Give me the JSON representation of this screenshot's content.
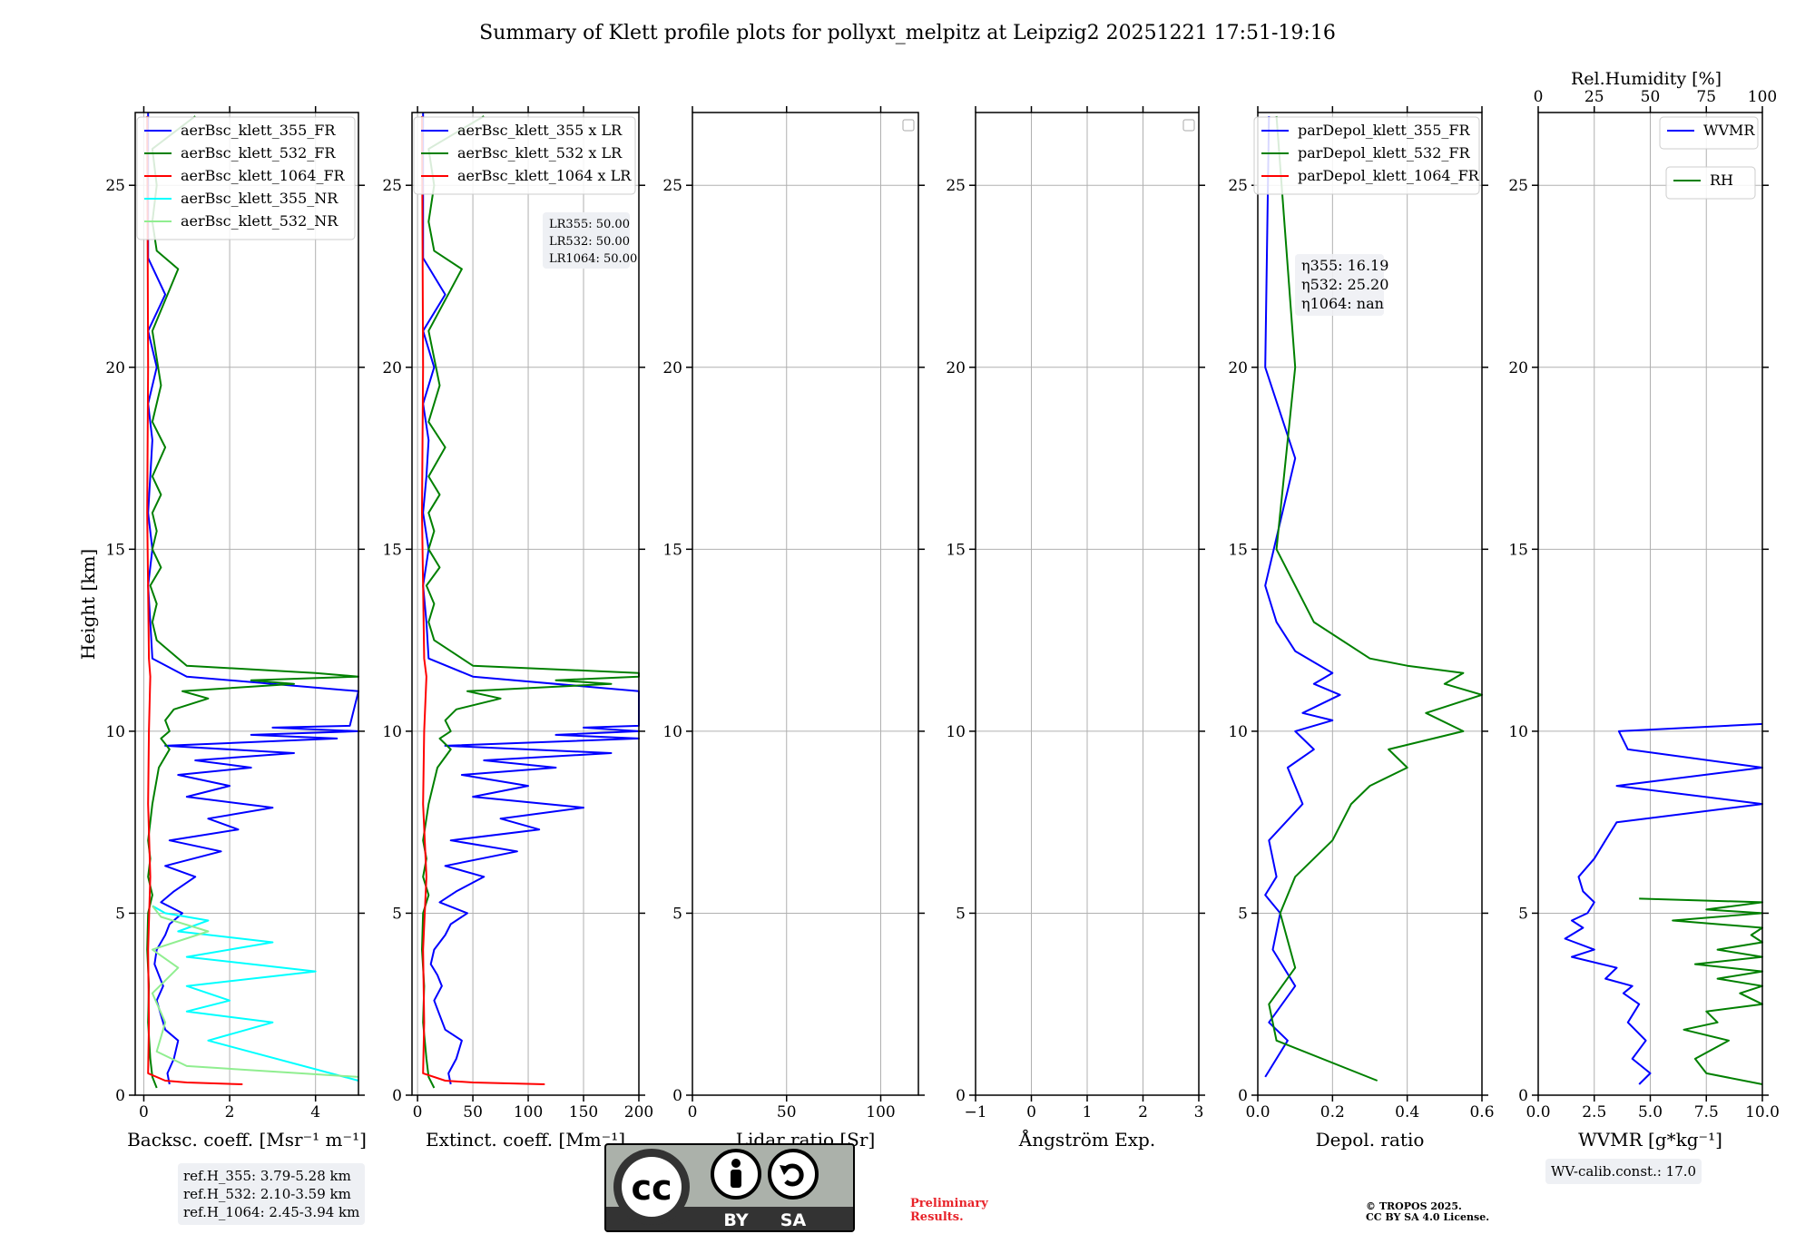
{
  "title": "Summary of Klett profile plots for pollyxt_melpitz at Leipzig2 20251221 17:51-19:16",
  "chart_data": [
    {
      "type": "line",
      "name": "backscatter",
      "xlabel": "Backsc. coeff. [Msr⁻¹ m⁻¹]",
      "ylabel": "Height [km]",
      "xlim": [
        -0.2,
        5
      ],
      "ylim": [
        0,
        27
      ],
      "xticks": [
        0,
        2,
        4
      ],
      "yticks": [
        0,
        5,
        10,
        15,
        20,
        25
      ],
      "grid": true,
      "legend_position": "top-right",
      "series": [
        {
          "name": "aerBsc_klett_355_FR",
          "color": "#0000ff",
          "x": [
            0.6,
            0.55,
            0.7,
            0.8,
            0.5,
            0.4,
            0.3,
            0.45,
            0.35,
            0.25,
            0.3,
            0.5,
            0.6,
            0.9,
            0.4,
            0.7,
            1.2,
            0.5,
            1.8,
            0.6,
            2.2,
            1.5,
            3.0,
            1.0,
            2.0,
            0.8,
            2.5,
            1.2,
            3.5,
            0.5,
            4.5,
            2.5,
            5.0,
            3.0,
            4.8,
            5.0,
            1.0,
            0.2,
            0.15,
            0.1,
            0.2,
            0.1,
            0.15,
            0.2,
            0.1,
            0.3,
            0.1,
            0.5,
            0.1,
            0.1
          ],
          "y": [
            0.3,
            0.6,
            1.0,
            1.5,
            1.8,
            2.2,
            2.6,
            3.0,
            3.3,
            3.6,
            4.0,
            4.4,
            4.7,
            5.0,
            5.3,
            5.6,
            6.0,
            6.3,
            6.7,
            7.0,
            7.3,
            7.6,
            7.9,
            8.2,
            8.5,
            8.8,
            9.0,
            9.2,
            9.4,
            9.6,
            9.8,
            9.9,
            10.0,
            10.1,
            10.15,
            11.1,
            11.5,
            12.0,
            13.0,
            14.0,
            15.0,
            16.0,
            17.0,
            18.0,
            19.0,
            20.0,
            21.0,
            22.0,
            23.0,
            27.0
          ]
        },
        {
          "name": "aerBsc_klett_532_FR",
          "color": "#008000",
          "x": [
            0.3,
            0.2,
            0.15,
            0.1,
            0.12,
            0.08,
            0.1,
            0.2,
            0.1,
            0.15,
            0.1,
            0.2,
            0.35,
            0.6,
            0.4,
            0.6,
            0.5,
            0.7,
            1.5,
            0.9,
            3.5,
            2.5,
            5.0,
            4.0,
            1.0,
            0.3,
            0.2,
            0.3,
            0.15,
            0.4,
            0.2,
            0.3,
            0.2,
            0.4,
            0.2,
            0.5,
            0.2,
            0.4,
            0.2,
            0.8,
            0.3,
            0.2,
            0.3,
            0.2,
            1.2
          ],
          "y": [
            0.2,
            0.5,
            1.0,
            2.0,
            3.0,
            4.0,
            5.0,
            5.5,
            6.0,
            6.5,
            7.0,
            8.0,
            9.0,
            9.5,
            9.8,
            10.0,
            10.3,
            10.6,
            10.9,
            11.1,
            11.3,
            11.4,
            11.5,
            11.6,
            11.8,
            12.5,
            13.0,
            13.5,
            14.0,
            14.5,
            15.0,
            15.5,
            16.0,
            16.5,
            17.0,
            17.8,
            18.5,
            19.5,
            21.0,
            22.7,
            23.2,
            24.0,
            25.0,
            26.0,
            26.9
          ]
        },
        {
          "name": "aerBsc_klett_1064_FR",
          "color": "#ff0000",
          "x": [
            2.3,
            1.0,
            0.5,
            0.1,
            0.12,
            0.1,
            0.15,
            0.1,
            0.12,
            0.15,
            0.12,
            0.08,
            0.1,
            0.08
          ],
          "y": [
            0.3,
            0.35,
            0.4,
            0.6,
            2.0,
            4.0,
            6.0,
            8.0,
            10.0,
            11.5,
            12.0,
            16.0,
            20.0,
            26.9
          ]
        },
        {
          "name": "aerBsc_klett_355_NR",
          "color": "#00ffff",
          "x": [
            5.0,
            1.5,
            3.0,
            1.0,
            2.0,
            1.0,
            4.0,
            1.0,
            3.0,
            0.8,
            1.5,
            0.5,
            0.2
          ],
          "y": [
            0.4,
            1.5,
            2.0,
            2.3,
            2.6,
            3.0,
            3.4,
            3.8,
            4.2,
            4.5,
            4.8,
            5.0,
            5.2
          ]
        },
        {
          "name": "aerBsc_klett_532_NR",
          "color": "#90ee90",
          "x": [
            5.0,
            1.0,
            0.3,
            0.5,
            0.2,
            0.8,
            0.2,
            1.5,
            0.4,
            0.2
          ],
          "y": [
            0.5,
            0.8,
            1.2,
            2.0,
            2.8,
            3.5,
            4.0,
            4.5,
            4.9,
            5.2
          ]
        }
      ]
    },
    {
      "type": "line",
      "name": "extinction",
      "xlabel": "Extinct. coeff. [Mm⁻¹]",
      "xlim": [
        -5,
        200
      ],
      "ylim": [
        0,
        27
      ],
      "xticks": [
        0,
        50,
        100,
        150,
        200
      ],
      "yticks": [
        0,
        5,
        10,
        15,
        20,
        25
      ],
      "grid": true,
      "legend_position": "top-right",
      "series": [
        {
          "name": "aerBsc_klett_355 x LR",
          "color": "#0000ff",
          "x": [
            30,
            28,
            35,
            40,
            25,
            20,
            15,
            22,
            18,
            12,
            15,
            25,
            30,
            45,
            20,
            35,
            60,
            25,
            90,
            30,
            110,
            75,
            150,
            50,
            100,
            40,
            125,
            60,
            175,
            25,
            200,
            125,
            200,
            150,
            200,
            200,
            50,
            10,
            8,
            5,
            10,
            5,
            8,
            10,
            5,
            15,
            5,
            25,
            5,
            5
          ],
          "y": [
            0.3,
            0.6,
            1.0,
            1.5,
            1.8,
            2.2,
            2.6,
            3.0,
            3.3,
            3.6,
            4.0,
            4.4,
            4.7,
            5.0,
            5.3,
            5.6,
            6.0,
            6.3,
            6.7,
            7.0,
            7.3,
            7.6,
            7.9,
            8.2,
            8.5,
            8.8,
            9.0,
            9.2,
            9.4,
            9.6,
            9.8,
            9.9,
            10.0,
            10.1,
            10.15,
            11.1,
            11.5,
            12.0,
            13.0,
            14.0,
            15.0,
            16.0,
            17.0,
            18.0,
            19.0,
            20.0,
            21.0,
            22.0,
            23.0,
            27.0
          ]
        },
        {
          "name": "aerBsc_klett_532 x LR",
          "color": "#008000",
          "x": [
            15,
            10,
            8,
            5,
            6,
            4,
            5,
            10,
            5,
            8,
            5,
            10,
            18,
            30,
            20,
            30,
            25,
            35,
            75,
            45,
            175,
            125,
            200,
            200,
            50,
            15,
            10,
            15,
            8,
            20,
            10,
            15,
            10,
            20,
            10,
            25,
            10,
            20,
            10,
            40,
            15,
            10,
            15,
            10,
            60
          ],
          "y": [
            0.2,
            0.5,
            1.0,
            2.0,
            3.0,
            4.0,
            5.0,
            5.5,
            6.0,
            6.5,
            7.0,
            8.0,
            9.0,
            9.5,
            9.8,
            10.0,
            10.3,
            10.6,
            10.9,
            11.1,
            11.3,
            11.4,
            11.5,
            11.6,
            11.8,
            12.5,
            13.0,
            13.5,
            14.0,
            14.5,
            15.0,
            15.5,
            16.0,
            16.5,
            17.0,
            17.8,
            18.5,
            19.5,
            21.0,
            22.7,
            23.2,
            24.0,
            25.0,
            26.0,
            26.9
          ]
        },
        {
          "name": "aerBsc_klett_1064 x LR",
          "color": "#ff0000",
          "x": [
            115,
            50,
            25,
            5,
            6,
            5,
            8,
            5,
            6,
            8,
            6,
            4,
            5,
            4
          ],
          "y": [
            0.3,
            0.35,
            0.4,
            0.6,
            2.0,
            4.0,
            6.0,
            8.0,
            10.0,
            11.5,
            12.0,
            16.0,
            20.0,
            26.9
          ]
        }
      ],
      "lr_annotation": [
        "LR355: 50.00",
        "LR532: 50.00",
        "LR1064: 50.00"
      ]
    },
    {
      "type": "line",
      "name": "lidar_ratio",
      "xlabel": "Lidar ratio [Sr]",
      "xlim": [
        0,
        120
      ],
      "ylim": [
        0,
        27
      ],
      "xticks": [
        0,
        50,
        100
      ],
      "yticks": [
        0,
        5,
        10,
        15,
        20,
        25
      ],
      "grid": true,
      "legend_position": "top-right",
      "series": []
    },
    {
      "type": "line",
      "name": "angstrom",
      "xlabel": "Ångström Exp.",
      "xlim": [
        -1,
        3
      ],
      "ylim": [
        0,
        27
      ],
      "xticks": [
        -1,
        0,
        1,
        2,
        3
      ],
      "yticks": [
        0,
        5,
        10,
        15,
        20,
        25
      ],
      "grid": true,
      "legend_position": "top-right",
      "series": []
    },
    {
      "type": "line",
      "name": "depol",
      "xlabel": "Depol. ratio",
      "xlim": [
        0,
        0.6
      ],
      "ylim": [
        0,
        27
      ],
      "xticks": [
        0.0,
        0.2,
        0.4,
        0.6
      ],
      "yticks": [
        0,
        5,
        10,
        15,
        20,
        25
      ],
      "grid": true,
      "legend_position": "top-left",
      "series": [
        {
          "name": "parDepol_klett_355_FR",
          "color": "#0000ff",
          "x": [
            0.02,
            0.08,
            0.03,
            0.1,
            0.04,
            0.06,
            0.02,
            0.05,
            0.03,
            0.12,
            0.08,
            0.15,
            0.1,
            0.2,
            0.12,
            0.18,
            0.22,
            0.15,
            0.2,
            0.15,
            0.1,
            0.05,
            0.02,
            0.1,
            0.02,
            0.03
          ],
          "y": [
            0.5,
            1.5,
            2.0,
            3.0,
            4.0,
            5.0,
            5.5,
            6.0,
            7.0,
            8.0,
            9.0,
            9.5,
            10.0,
            10.3,
            10.5,
            10.8,
            11.0,
            11.3,
            11.6,
            11.9,
            12.2,
            13.0,
            14.0,
            17.5,
            20.0,
            26.9
          ]
        },
        {
          "name": "parDepol_klett_532_FR",
          "color": "#008000",
          "x": [
            0.32,
            0.05,
            0.03,
            0.1,
            0.06,
            0.1,
            0.2,
            0.25,
            0.3,
            0.4,
            0.35,
            0.55,
            0.45,
            0.6,
            0.5,
            0.55,
            0.4,
            0.3,
            0.15,
            0.05,
            0.1,
            0.05
          ],
          "y": [
            0.4,
            1.5,
            2.5,
            3.5,
            5.0,
            6.0,
            7.0,
            8.0,
            8.5,
            9.0,
            9.5,
            10.0,
            10.5,
            11.0,
            11.3,
            11.6,
            11.8,
            12.0,
            13.0,
            15.0,
            20.0,
            26.9
          ]
        },
        {
          "name": "parDepol_klett_1064_FR",
          "color": "#ff0000",
          "x": [],
          "y": []
        }
      ],
      "eta_annotation": [
        "η355: 16.19",
        "η532: 25.20",
        "η1064: nan"
      ]
    },
    {
      "type": "line",
      "name": "wvmr",
      "xlabel": "WVMR [g*kg⁻¹]",
      "xlim": [
        0,
        10
      ],
      "ylim": [
        0,
        27
      ],
      "xticks": [
        0.0,
        2.5,
        5.0,
        7.5,
        10.0
      ],
      "yticks": [
        0,
        5,
        10,
        15,
        20,
        25
      ],
      "grid": true,
      "legend_position": "top-right",
      "top_axis": {
        "label": "Rel.Humidity [%]",
        "xlim": [
          0,
          100
        ],
        "xticks": [
          0,
          25,
          50,
          75,
          100
        ]
      },
      "series": [
        {
          "name": "WVMR",
          "color": "#0000ff",
          "x": [
            4.5,
            5.0,
            4.2,
            4.8,
            4.0,
            4.5,
            3.8,
            4.2,
            3.0,
            3.5,
            1.5,
            2.5,
            1.2,
            2.0,
            1.5,
            2.2,
            2.5,
            2.0,
            1.8,
            2.5,
            3.0,
            3.5,
            10.0,
            3.5,
            10.0,
            4.0,
            3.6,
            10.0
          ],
          "y": [
            0.3,
            0.6,
            1.0,
            1.5,
            2.0,
            2.5,
            2.8,
            3.0,
            3.2,
            3.5,
            3.8,
            4.0,
            4.3,
            4.6,
            4.8,
            5.0,
            5.3,
            5.6,
            6.0,
            6.5,
            7.0,
            7.5,
            8.0,
            8.5,
            9.0,
            9.5,
            10.0,
            10.2
          ]
        },
        {
          "name": "RH",
          "color": "#008000",
          "x": [
            10.0,
            7.5,
            7.0,
            8.5,
            6.5,
            8.0,
            7.5,
            10.0,
            9.0,
            10.0,
            8.0,
            10.0,
            7.0,
            10.0,
            8.0,
            10.0,
            9.5,
            10.0,
            6.0,
            10.0,
            7.5,
            10.0,
            4.5
          ],
          "y": [
            0.3,
            0.6,
            1.0,
            1.5,
            1.8,
            2.0,
            2.3,
            2.5,
            2.8,
            3.0,
            3.2,
            3.4,
            3.6,
            3.8,
            4.0,
            4.2,
            4.4,
            4.6,
            4.8,
            5.0,
            5.1,
            5.3,
            5.4
          ]
        }
      ]
    }
  ],
  "legends": {
    "bsc": [
      "aerBsc_klett_355_FR",
      "aerBsc_klett_532_FR",
      "aerBsc_klett_1064_FR",
      "aerBsc_klett_355_NR",
      "aerBsc_klett_532_NR"
    ],
    "ext": [
      "aerBsc_klett_355 x LR",
      "aerBsc_klett_532 x LR",
      "aerBsc_klett_1064 x LR"
    ],
    "depol": [
      "parDepol_klett_355_FR",
      "parDepol_klett_532_FR",
      "parDepol_klett_1064_FR"
    ],
    "wv_wvmr": "WVMR",
    "wv_rh": "RH"
  },
  "annotations": {
    "ref_heights": [
      "ref.H_355: 3.79-5.28 km",
      "ref.H_532: 2.10-3.59 km",
      "ref.H_1064: 2.45-3.94 km"
    ],
    "wv_calib": "WV-calib.const.: 17.0",
    "preliminary": [
      "Preliminary",
      "Results."
    ],
    "copyright": [
      "© TROPOS 2025.",
      "CC BY SA 4.0 License."
    ],
    "cc_labels": [
      "BY",
      "SA"
    ],
    "cc_logo_text": "cc"
  },
  "colors": {
    "blue": "#0000ff",
    "green": "#008000",
    "red": "#ff0000",
    "cyan": "#00ffff",
    "lightgreen": "#90ee90",
    "grid": "#b0b0b0",
    "cc_gray": "#abb1aa",
    "cc_dark": "#333333"
  }
}
